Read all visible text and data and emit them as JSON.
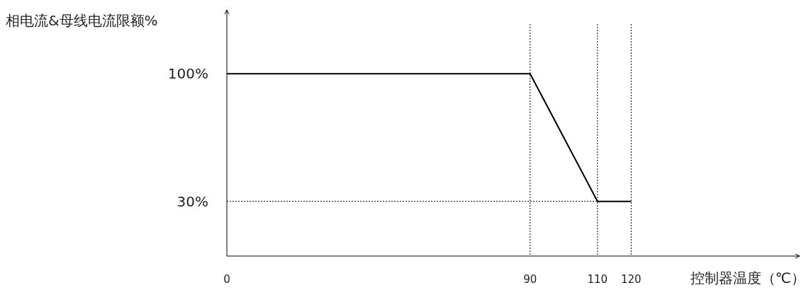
{
  "chart_data": {
    "type": "line",
    "xlabel": "控制器温度（℃）",
    "ylabel": "相电流&母线电流限额%",
    "x": [
      0,
      90,
      110,
      120
    ],
    "values": [
      100,
      100,
      30,
      30
    ],
    "color": "#000000",
    "line_style": "solid",
    "xlim": [
      0,
      170
    ],
    "ylim": [
      0,
      135
    ],
    "xticks": [
      0,
      90,
      110,
      120
    ],
    "yticks": [
      {
        "value": 30,
        "label": "30%"
      },
      {
        "value": 100,
        "label": "100%"
      }
    ],
    "ref_lines": [
      {
        "axis": "x",
        "value": 90,
        "line_style": "dotted"
      },
      {
        "axis": "x",
        "value": 110,
        "line_style": "dotted"
      },
      {
        "axis": "x",
        "value": 120,
        "line_style": "dotted"
      },
      {
        "axis": "y",
        "value": 30,
        "line_style": "dotted"
      }
    ]
  }
}
